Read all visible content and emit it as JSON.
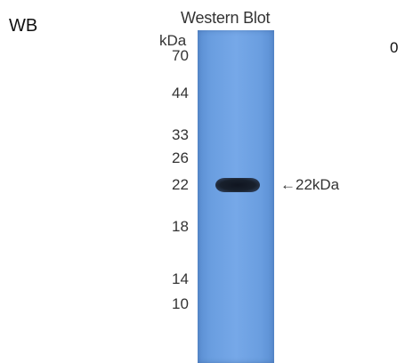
{
  "corner_label": "WB",
  "corner_value": "0",
  "blot": {
    "title": "Western Blot",
    "unit": "kDa",
    "markers": [
      "70",
      "44",
      "33",
      "26",
      "22",
      "18",
      "14",
      "10"
    ],
    "band_label": "←22kDa",
    "lane_color": "#6e9fe0",
    "band_color": "#151b26"
  }
}
